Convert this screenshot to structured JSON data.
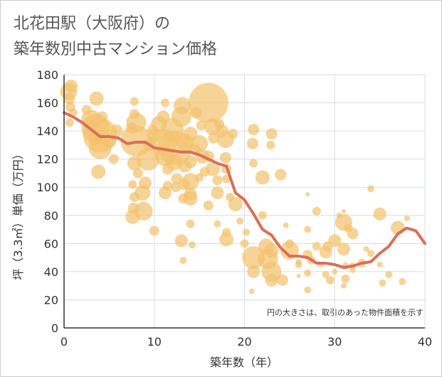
{
  "title_line1": "北花田駅（大阪府）の",
  "title_line2": "築年数別中古マンション価格",
  "chart_data": {
    "type": "scatter",
    "xlabel": "築年数（年）",
    "ylabel": "坪（3.3㎡）単価（万円）",
    "xlim": [
      0,
      40
    ],
    "ylim": [
      0,
      180
    ],
    "x_ticks": [
      "0",
      "10",
      "20",
      "30",
      "40"
    ],
    "y_ticks": [
      "0",
      "20",
      "40",
      "60",
      "80",
      "100",
      "120",
      "140",
      "160",
      "180"
    ],
    "grid": true,
    "annotation": "円の大きさは、取引のあった物件面積を示す",
    "colors": {
      "bubble": "#f2c26e",
      "line": "#d96f5a",
      "grid": "#d6dde6",
      "axis": "#333333"
    },
    "bubble_series": [
      {
        "x": 0.5,
        "y": 168,
        "s": 12
      },
      {
        "x": 0.8,
        "y": 172,
        "s": 9
      },
      {
        "x": 0.6,
        "y": 163,
        "s": 8
      },
      {
        "x": 0.7,
        "y": 157,
        "s": 7
      },
      {
        "x": 1,
        "y": 153,
        "s": 6
      },
      {
        "x": 0.6,
        "y": 146,
        "s": 6
      },
      {
        "x": 2.5,
        "y": 155,
        "s": 7
      },
      {
        "x": 3,
        "y": 148,
        "s": 14
      },
      {
        "x": 3.5,
        "y": 142,
        "s": 20
      },
      {
        "x": 4,
        "y": 137,
        "s": 24
      },
      {
        "x": 4,
        "y": 128,
        "s": 16
      },
      {
        "x": 3.5,
        "y": 135,
        "s": 10
      },
      {
        "x": 3.6,
        "y": 163,
        "s": 10
      },
      {
        "x": 4.2,
        "y": 150,
        "s": 8
      },
      {
        "x": 3.8,
        "y": 111,
        "s": 10
      },
      {
        "x": 5,
        "y": 133,
        "s": 10
      },
      {
        "x": 5.5,
        "y": 120,
        "s": 7
      },
      {
        "x": 5.8,
        "y": 140,
        "s": 9
      },
      {
        "x": 7.5,
        "y": 142,
        "s": 8
      },
      {
        "x": 7.8,
        "y": 152,
        "s": 7
      },
      {
        "x": 7.8,
        "y": 161,
        "s": 6
      },
      {
        "x": 8,
        "y": 146,
        "s": 14
      },
      {
        "x": 8,
        "y": 133,
        "s": 22
      },
      {
        "x": 7.8,
        "y": 117,
        "s": 10
      },
      {
        "x": 8.2,
        "y": 110,
        "s": 7
      },
      {
        "x": 7.6,
        "y": 102,
        "s": 6
      },
      {
        "x": 7.8,
        "y": 93,
        "s": 7
      },
      {
        "x": 7.7,
        "y": 85,
        "s": 8
      },
      {
        "x": 7.6,
        "y": 79,
        "s": 10
      },
      {
        "x": 8.8,
        "y": 83,
        "s": 13
      },
      {
        "x": 8.7,
        "y": 96,
        "s": 11
      },
      {
        "x": 9,
        "y": 103,
        "s": 9
      },
      {
        "x": 9.3,
        "y": 120,
        "s": 16
      },
      {
        "x": 9.5,
        "y": 130,
        "s": 9
      },
      {
        "x": 9.8,
        "y": 141,
        "s": 7
      },
      {
        "x": 10,
        "y": 137,
        "s": 10
      },
      {
        "x": 10.5,
        "y": 145,
        "s": 11
      },
      {
        "x": 11,
        "y": 150,
        "s": 9
      },
      {
        "x": 11,
        "y": 132,
        "s": 19
      },
      {
        "x": 11.2,
        "y": 122,
        "s": 14
      },
      {
        "x": 11.5,
        "y": 113,
        "s": 8
      },
      {
        "x": 11.5,
        "y": 101,
        "s": 7
      },
      {
        "x": 11.2,
        "y": 96,
        "s": 9
      },
      {
        "x": 10,
        "y": 69,
        "s": 7
      },
      {
        "x": 11.2,
        "y": 160,
        "s": 6
      },
      {
        "x": 12,
        "y": 141,
        "s": 16
      },
      {
        "x": 12.3,
        "y": 128,
        "s": 24
      },
      {
        "x": 12.2,
        "y": 118,
        "s": 12
      },
      {
        "x": 12.5,
        "y": 106,
        "s": 8
      },
      {
        "x": 12.4,
        "y": 100,
        "s": 7
      },
      {
        "x": 13,
        "y": 150,
        "s": 14
      },
      {
        "x": 13.1,
        "y": 158,
        "s": 12
      },
      {
        "x": 13.4,
        "y": 132,
        "s": 12
      },
      {
        "x": 13.4,
        "y": 115,
        "s": 9
      },
      {
        "x": 13.3,
        "y": 102,
        "s": 8
      },
      {
        "x": 13.2,
        "y": 92,
        "s": 7
      },
      {
        "x": 13,
        "y": 62,
        "s": 9
      },
      {
        "x": 13.2,
        "y": 48,
        "s": 5
      },
      {
        "x": 14,
        "y": 138,
        "s": 10
      },
      {
        "x": 14.5,
        "y": 127,
        "s": 8
      },
      {
        "x": 14,
        "y": 118,
        "s": 9
      },
      {
        "x": 14,
        "y": 104,
        "s": 12
      },
      {
        "x": 14,
        "y": 95,
        "s": 9
      },
      {
        "x": 14,
        "y": 92,
        "s": 10
      },
      {
        "x": 14,
        "y": 74,
        "s": 6
      },
      {
        "x": 14.2,
        "y": 59,
        "s": 5
      },
      {
        "x": 14.6,
        "y": 153,
        "s": 8
      },
      {
        "x": 15.2,
        "y": 144,
        "s": 7
      },
      {
        "x": 15,
        "y": 131,
        "s": 12
      },
      {
        "x": 15.3,
        "y": 122,
        "s": 10
      },
      {
        "x": 15.6,
        "y": 111,
        "s": 7
      },
      {
        "x": 15,
        "y": 107,
        "s": 6
      },
      {
        "x": 16,
        "y": 160,
        "s": 28
      },
      {
        "x": 16.5,
        "y": 143,
        "s": 12
      },
      {
        "x": 16.6,
        "y": 135,
        "s": 8
      },
      {
        "x": 16,
        "y": 122,
        "s": 8
      },
      {
        "x": 16.5,
        "y": 113,
        "s": 10
      },
      {
        "x": 16,
        "y": 87,
        "s": 7
      },
      {
        "x": 17,
        "y": 105,
        "s": 7
      },
      {
        "x": 17,
        "y": 96,
        "s": 9
      },
      {
        "x": 17,
        "y": 74,
        "s": 5
      },
      {
        "x": 17.2,
        "y": 145,
        "s": 7
      },
      {
        "x": 17.5,
        "y": 140,
        "s": 9
      },
      {
        "x": 17.9,
        "y": 134,
        "s": 12
      },
      {
        "x": 17.9,
        "y": 121,
        "s": 8
      },
      {
        "x": 18,
        "y": 113,
        "s": 7
      },
      {
        "x": 18,
        "y": 106,
        "s": 6
      },
      {
        "x": 18,
        "y": 63,
        "s": 10
      },
      {
        "x": 18,
        "y": 68,
        "s": 6
      },
      {
        "x": 18.7,
        "y": 138,
        "s": 7
      },
      {
        "x": 18.4,
        "y": 93,
        "s": 6
      },
      {
        "x": 19,
        "y": 88,
        "s": 10
      },
      {
        "x": 19.5,
        "y": 76,
        "s": 5
      },
      {
        "x": 20,
        "y": 60,
        "s": 6
      },
      {
        "x": 20.2,
        "y": 68,
        "s": 5
      },
      {
        "x": 21,
        "y": 141,
        "s": 8
      },
      {
        "x": 20.9,
        "y": 131,
        "s": 8
      },
      {
        "x": 21,
        "y": 117,
        "s": 6
      },
      {
        "x": 21,
        "y": 50,
        "s": 16
      },
      {
        "x": 21,
        "y": 40,
        "s": 9
      },
      {
        "x": 20.8,
        "y": 26,
        "s": 4
      },
      {
        "x": 22,
        "y": 80,
        "s": 6
      },
      {
        "x": 22,
        "y": 107,
        "s": 10
      },
      {
        "x": 22.4,
        "y": 58,
        "s": 11
      },
      {
        "x": 22.6,
        "y": 49,
        "s": 14
      },
      {
        "x": 23,
        "y": 55,
        "s": 10
      },
      {
        "x": 23,
        "y": 40,
        "s": 14
      },
      {
        "x": 23,
        "y": 34,
        "s": 9
      },
      {
        "x": 23,
        "y": 138,
        "s": 8
      },
      {
        "x": 22.9,
        "y": 130,
        "s": 6
      },
      {
        "x": 24,
        "y": 109,
        "s": 8
      },
      {
        "x": 24.2,
        "y": 34,
        "s": 8
      },
      {
        "x": 25,
        "y": 55,
        "s": 13
      },
      {
        "x": 25,
        "y": 60,
        "s": 6
      },
      {
        "x": 24.6,
        "y": 73,
        "s": 4
      },
      {
        "x": 26,
        "y": 45,
        "s": 5
      },
      {
        "x": 26,
        "y": 47,
        "s": 4
      },
      {
        "x": 26,
        "y": 37,
        "s": 3
      },
      {
        "x": 27,
        "y": 95,
        "s": 3
      },
      {
        "x": 27,
        "y": 70,
        "s": 5
      },
      {
        "x": 27,
        "y": 52,
        "s": 7
      },
      {
        "x": 27,
        "y": 39,
        "s": 5
      },
      {
        "x": 27,
        "y": 27,
        "s": 5
      },
      {
        "x": 27.4,
        "y": 48,
        "s": 6
      },
      {
        "x": 28,
        "y": 83,
        "s": 6
      },
      {
        "x": 28,
        "y": 58,
        "s": 6
      },
      {
        "x": 28.5,
        "y": 45,
        "s": 4
      },
      {
        "x": 29,
        "y": 54,
        "s": 9
      },
      {
        "x": 29,
        "y": 38,
        "s": 5
      },
      {
        "x": 29.2,
        "y": 58,
        "s": 7
      },
      {
        "x": 29.5,
        "y": 34,
        "s": 6
      },
      {
        "x": 30,
        "y": 62,
        "s": 9
      },
      {
        "x": 30,
        "y": 40,
        "s": 4
      },
      {
        "x": 30.5,
        "y": 80,
        "s": 4
      },
      {
        "x": 31,
        "y": 75,
        "s": 12
      },
      {
        "x": 31,
        "y": 56,
        "s": 9
      },
      {
        "x": 31.5,
        "y": 71,
        "s": 6
      },
      {
        "x": 31.2,
        "y": 44,
        "s": 5
      },
      {
        "x": 31.2,
        "y": 35,
        "s": 6
      },
      {
        "x": 31,
        "y": 30,
        "s": 4
      },
      {
        "x": 31,
        "y": 83,
        "s": 3
      },
      {
        "x": 32,
        "y": 67,
        "s": 8
      },
      {
        "x": 32,
        "y": 44,
        "s": 5
      },
      {
        "x": 32,
        "y": 41,
        "s": 4
      },
      {
        "x": 33,
        "y": 46,
        "s": 6
      },
      {
        "x": 33.5,
        "y": 56,
        "s": 4
      },
      {
        "x": 34,
        "y": 99,
        "s": 5
      },
      {
        "x": 34,
        "y": 53,
        "s": 5
      },
      {
        "x": 35,
        "y": 81,
        "s": 9
      },
      {
        "x": 35,
        "y": 45,
        "s": 4
      },
      {
        "x": 35.3,
        "y": 32,
        "s": 5
      },
      {
        "x": 36,
        "y": 38,
        "s": 5
      },
      {
        "x": 37,
        "y": 71,
        "s": 10
      },
      {
        "x": 37.5,
        "y": 33,
        "s": 5
      },
      {
        "x": 38,
        "y": 78,
        "s": 4
      }
    ],
    "line_series": {
      "x": [
        0,
        1,
        2,
        3,
        4,
        5,
        6,
        7,
        8,
        9,
        10,
        11,
        12,
        13,
        14,
        15,
        16,
        17,
        18,
        19,
        20,
        21,
        22,
        23,
        24,
        25,
        26,
        27,
        28,
        29,
        30,
        31,
        32,
        33,
        34,
        35,
        36,
        37,
        38,
        39,
        40
      ],
      "y": [
        153,
        150,
        146,
        141,
        136,
        136,
        135,
        131,
        132,
        132,
        128,
        127,
        126,
        125,
        125,
        123,
        120,
        117,
        115,
        96,
        91,
        81,
        70,
        66,
        57,
        51,
        51,
        50,
        46,
        46,
        45,
        43,
        44,
        46,
        47,
        53,
        58,
        67,
        71,
        69,
        60
      ]
    }
  }
}
